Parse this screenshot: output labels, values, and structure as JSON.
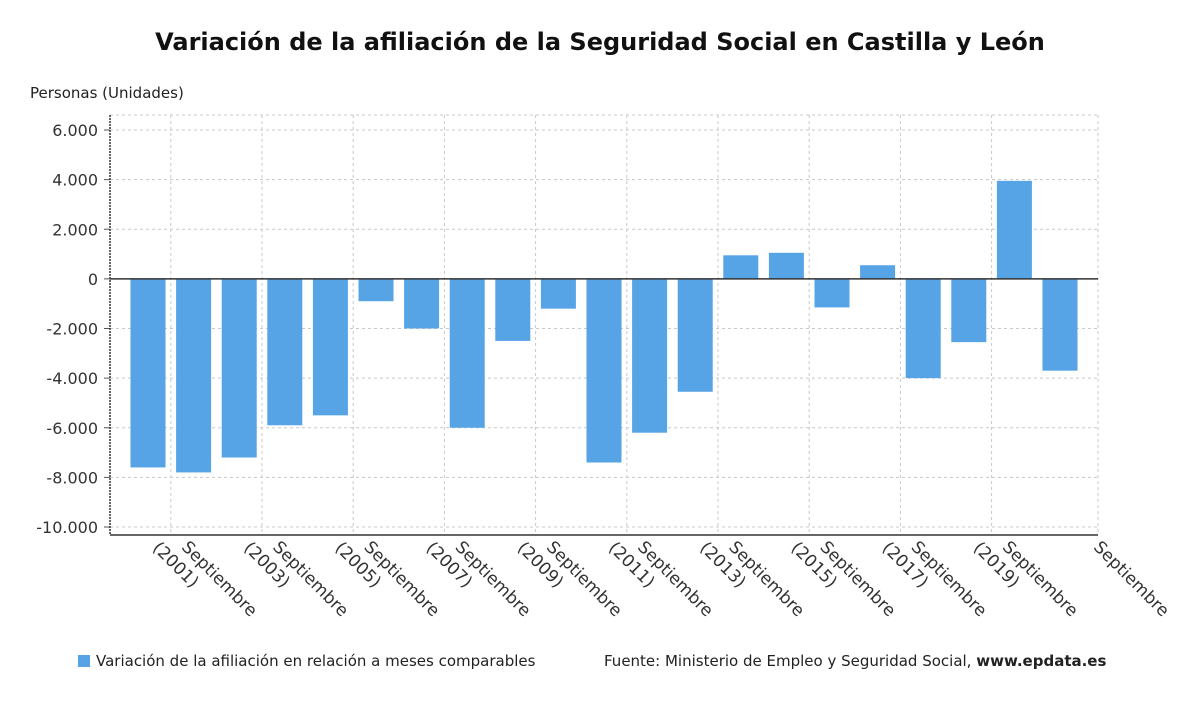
{
  "chart_data": {
    "type": "bar",
    "title": "Variación de la afiliación de la Seguridad Social en Castilla y León",
    "ylabel": "Personas (Unidades)",
    "xlabel": "",
    "ylim": [
      -10000,
      6000
    ],
    "y_ticks": [
      "6.000",
      "4.000",
      "2.000",
      "0",
      "-2.000",
      "-4.000",
      "-6.000",
      "-8.000",
      "-10.000"
    ],
    "x_tick_labels": [
      [
        "Septiembre",
        "(2001)"
      ],
      [
        "Septiembre",
        "(2003)"
      ],
      [
        "Septiembre",
        "(2005)"
      ],
      [
        "Septiembre",
        "(2007)"
      ],
      [
        "Septiembre",
        "(2009)"
      ],
      [
        "Septiembre",
        "(2011)"
      ],
      [
        "Septiembre",
        "(2013)"
      ],
      [
        "Septiembre",
        "(2015)"
      ],
      [
        "Septiembre",
        "(2017)"
      ],
      [
        "Septiembre",
        "(2019)"
      ],
      [
        "Septiembre"
      ]
    ],
    "grid": true,
    "series": [
      {
        "name": "Variación de la afiliación en relación a meses comparables",
        "color": "#56a3e6",
        "values": [
          -7600,
          -7800,
          -7200,
          -5900,
          -5500,
          -900,
          -2000,
          -6000,
          -2500,
          -1200,
          -7400,
          -6200,
          -4550,
          950,
          1050,
          -1150,
          550,
          -4000,
          -2550,
          3950,
          -3700
        ]
      }
    ]
  },
  "legend": {
    "label": "Variación de la afiliación en relación a meses comparables"
  },
  "source": {
    "prefix": "Fuente: Ministerio de Empleo y Seguridad Social,",
    "site": "www.epdata.es"
  }
}
